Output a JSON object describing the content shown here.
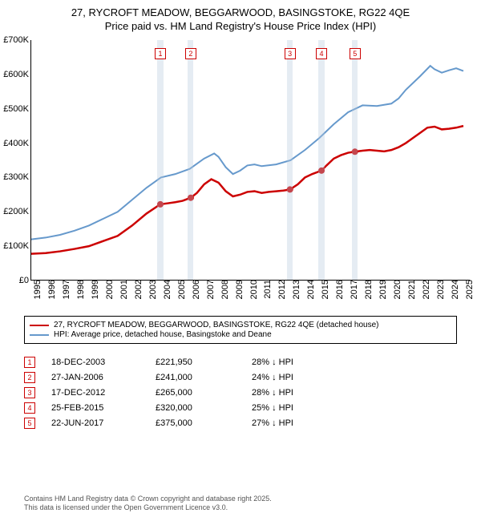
{
  "title_line1": "27, RYCROFT MEADOW, BEGGARWOOD, BASINGSTOKE, RG22 4QE",
  "title_line2": "Price paid vs. HM Land Registry's House Price Index (HPI)",
  "chart": {
    "type": "line",
    "x_range": [
      1995,
      2025.5
    ],
    "y_range": [
      0,
      700000
    ],
    "y_ticks": [
      0,
      100000,
      200000,
      300000,
      400000,
      500000,
      600000,
      700000
    ],
    "y_tick_labels": [
      "£0",
      "£100K",
      "£200K",
      "£300K",
      "£400K",
      "£500K",
      "£600K",
      "£700K"
    ],
    "x_ticks": [
      1995,
      1996,
      1997,
      1998,
      1999,
      2000,
      2001,
      2002,
      2003,
      2004,
      2005,
      2006,
      2007,
      2008,
      2009,
      2010,
      2011,
      2012,
      2013,
      2014,
      2015,
      2016,
      2017,
      2018,
      2019,
      2020,
      2021,
      2022,
      2023,
      2024,
      2025
    ],
    "background_color": "#ffffff",
    "axis_color": "#000000",
    "tick_fontsize": 11,
    "series": [
      {
        "name": "property",
        "label": "27, RYCROFT MEADOW, BEGGARWOOD, BASINGSTOKE, RG22 4QE (detached house)",
        "color": "#cc0000",
        "width": 2.5,
        "points": [
          [
            1995,
            78000
          ],
          [
            1996,
            80000
          ],
          [
            1997,
            85000
          ],
          [
            1998,
            92000
          ],
          [
            1999,
            100000
          ],
          [
            2000,
            115000
          ],
          [
            2001,
            130000
          ],
          [
            2002,
            160000
          ],
          [
            2003,
            195000
          ],
          [
            2003.96,
            221950
          ],
          [
            2004.5,
            225000
          ],
          [
            2005,
            228000
          ],
          [
            2005.5,
            232000
          ],
          [
            2006.07,
            241000
          ],
          [
            2006.5,
            255000
          ],
          [
            2007,
            280000
          ],
          [
            2007.5,
            295000
          ],
          [
            2008,
            285000
          ],
          [
            2008.5,
            260000
          ],
          [
            2009,
            245000
          ],
          [
            2009.5,
            250000
          ],
          [
            2010,
            258000
          ],
          [
            2010.5,
            260000
          ],
          [
            2011,
            255000
          ],
          [
            2011.5,
            258000
          ],
          [
            2012,
            260000
          ],
          [
            2012.5,
            262000
          ],
          [
            2012.96,
            265000
          ],
          [
            2013.5,
            280000
          ],
          [
            2014,
            300000
          ],
          [
            2014.5,
            310000
          ],
          [
            2015.15,
            320000
          ],
          [
            2015.5,
            335000
          ],
          [
            2016,
            355000
          ],
          [
            2016.5,
            365000
          ],
          [
            2017,
            372000
          ],
          [
            2017.47,
            375000
          ],
          [
            2018,
            378000
          ],
          [
            2018.5,
            380000
          ],
          [
            2019,
            378000
          ],
          [
            2019.5,
            376000
          ],
          [
            2020,
            380000
          ],
          [
            2020.5,
            388000
          ],
          [
            2021,
            400000
          ],
          [
            2021.5,
            415000
          ],
          [
            2022,
            430000
          ],
          [
            2022.5,
            445000
          ],
          [
            2023,
            448000
          ],
          [
            2023.5,
            440000
          ],
          [
            2024,
            442000
          ],
          [
            2024.5,
            445000
          ],
          [
            2025,
            450000
          ]
        ]
      },
      {
        "name": "hpi",
        "label": "HPI: Average price, detached house, Basingstoke and Deane",
        "color": "#6699cc",
        "width": 2,
        "points": [
          [
            1995,
            120000
          ],
          [
            1996,
            125000
          ],
          [
            1997,
            133000
          ],
          [
            1998,
            145000
          ],
          [
            1999,
            160000
          ],
          [
            2000,
            180000
          ],
          [
            2001,
            200000
          ],
          [
            2002,
            235000
          ],
          [
            2003,
            270000
          ],
          [
            2004,
            300000
          ],
          [
            2005,
            310000
          ],
          [
            2006,
            325000
          ],
          [
            2007,
            355000
          ],
          [
            2007.7,
            370000
          ],
          [
            2008,
            360000
          ],
          [
            2008.5,
            330000
          ],
          [
            2009,
            310000
          ],
          [
            2009.5,
            320000
          ],
          [
            2010,
            335000
          ],
          [
            2010.5,
            338000
          ],
          [
            2011,
            333000
          ],
          [
            2012,
            338000
          ],
          [
            2013,
            350000
          ],
          [
            2014,
            380000
          ],
          [
            2015,
            415000
          ],
          [
            2016,
            455000
          ],
          [
            2017,
            490000
          ],
          [
            2018,
            510000
          ],
          [
            2019,
            508000
          ],
          [
            2020,
            515000
          ],
          [
            2020.5,
            530000
          ],
          [
            2021,
            555000
          ],
          [
            2022,
            595000
          ],
          [
            2022.7,
            625000
          ],
          [
            2023,
            615000
          ],
          [
            2023.5,
            605000
          ],
          [
            2024,
            612000
          ],
          [
            2024.5,
            618000
          ],
          [
            2025,
            610000
          ]
        ]
      }
    ],
    "markers": [
      {
        "num": "1",
        "x": 2003.96,
        "y": 221950,
        "band_width": 0.4
      },
      {
        "num": "2",
        "x": 2006.07,
        "y": 241000,
        "band_width": 0.4
      },
      {
        "num": "3",
        "x": 2012.96,
        "y": 265000,
        "band_width": 0.4
      },
      {
        "num": "4",
        "x": 2015.15,
        "y": 320000,
        "band_width": 0.4
      },
      {
        "num": "5",
        "x": 2017.47,
        "y": 375000,
        "band_width": 0.4
      }
    ],
    "marker_dot_color": "#cc0000",
    "marker_band_color": "rgba(180,200,220,0.35)"
  },
  "transactions": [
    {
      "num": "1",
      "date": "18-DEC-2003",
      "price": "£221,950",
      "delta": "28% ↓ HPI"
    },
    {
      "num": "2",
      "date": "27-JAN-2006",
      "price": "£241,000",
      "delta": "24% ↓ HPI"
    },
    {
      "num": "3",
      "date": "17-DEC-2012",
      "price": "£265,000",
      "delta": "28% ↓ HPI"
    },
    {
      "num": "4",
      "date": "25-FEB-2015",
      "price": "£320,000",
      "delta": "25% ↓ HPI"
    },
    {
      "num": "5",
      "date": "22-JUN-2017",
      "price": "£375,000",
      "delta": "27% ↓ HPI"
    }
  ],
  "footer_line1": "Contains HM Land Registry data © Crown copyright and database right 2025.",
  "footer_line2": "This data is licensed under the Open Government Licence v3.0."
}
